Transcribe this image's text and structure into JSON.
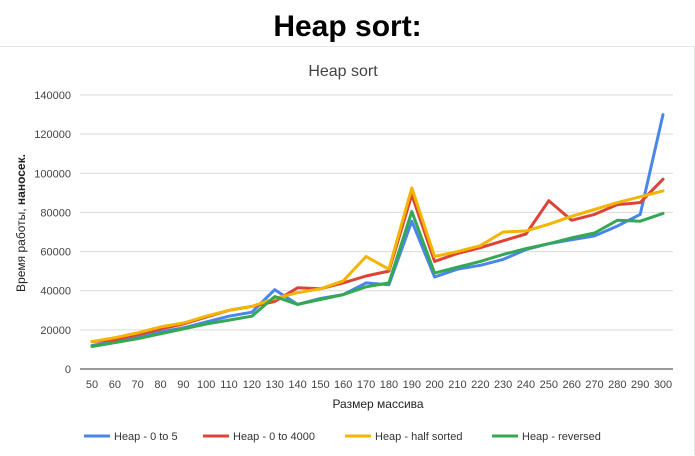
{
  "heading": "Heap sort:",
  "chart_data": {
    "type": "line",
    "title": "Heap sort",
    "xlabel": "Размер массива",
    "ylabel_regular": "Время работы, ",
    "ylabel_bold": "наносек.",
    "ylim": [
      0,
      140000
    ],
    "yticks": [
      0,
      20000,
      40000,
      60000,
      80000,
      100000,
      120000,
      140000
    ],
    "ytick_labels": [
      "0",
      "20000",
      "40000",
      "60000",
      "80000",
      "100000",
      "120000",
      "140000"
    ],
    "categories": [
      "50",
      "60",
      "70",
      "80",
      "90",
      "100",
      "110",
      "120",
      "130",
      "140",
      "150",
      "160",
      "170",
      "180",
      "190",
      "200",
      "210",
      "220",
      "230",
      "240",
      "250",
      "260",
      "270",
      "280",
      "290",
      "300"
    ],
    "grid": true,
    "legend_position": "bottom",
    "series": [
      {
        "name": "Heap - 0 to 5",
        "color": "#4a86e8",
        "values": [
          12000,
          14000,
          16000,
          19000,
          21000,
          24000,
          27000,
          29000,
          40500,
          33000,
          36000,
          38000,
          44000,
          43000,
          75500,
          47000,
          51000,
          53000,
          56000,
          61000,
          64000,
          66000,
          68000,
          73000,
          79000,
          130000
        ]
      },
      {
        "name": "Heap - 0 to 4000",
        "color": "#db4437",
        "values": [
          14000,
          15000,
          17500,
          20500,
          23000,
          26500,
          30000,
          32000,
          34500,
          41500,
          41000,
          44000,
          47500,
          50000,
          89000,
          55000,
          59000,
          62000,
          65500,
          69000,
          86000,
          76000,
          79000,
          84000,
          85000,
          97000
        ]
      },
      {
        "name": "Heap - half sorted",
        "color": "#f4b400",
        "values": [
          14000,
          16000,
          18500,
          21500,
          23500,
          27000,
          30000,
          32000,
          36000,
          39000,
          41000,
          45000,
          57500,
          51000,
          92500,
          57500,
          60000,
          63000,
          70000,
          70500,
          74000,
          78000,
          81500,
          85000,
          88000,
          91000
        ]
      },
      {
        "name": "Heap - reversed",
        "color": "#34a853",
        "values": [
          11500,
          13500,
          15500,
          18000,
          20500,
          23000,
          25000,
          27000,
          37000,
          33000,
          35500,
          38000,
          42000,
          44000,
          80500,
          49000,
          52000,
          55000,
          58500,
          61500,
          64000,
          67000,
          69500,
          76000,
          75500,
          79500
        ]
      }
    ]
  }
}
